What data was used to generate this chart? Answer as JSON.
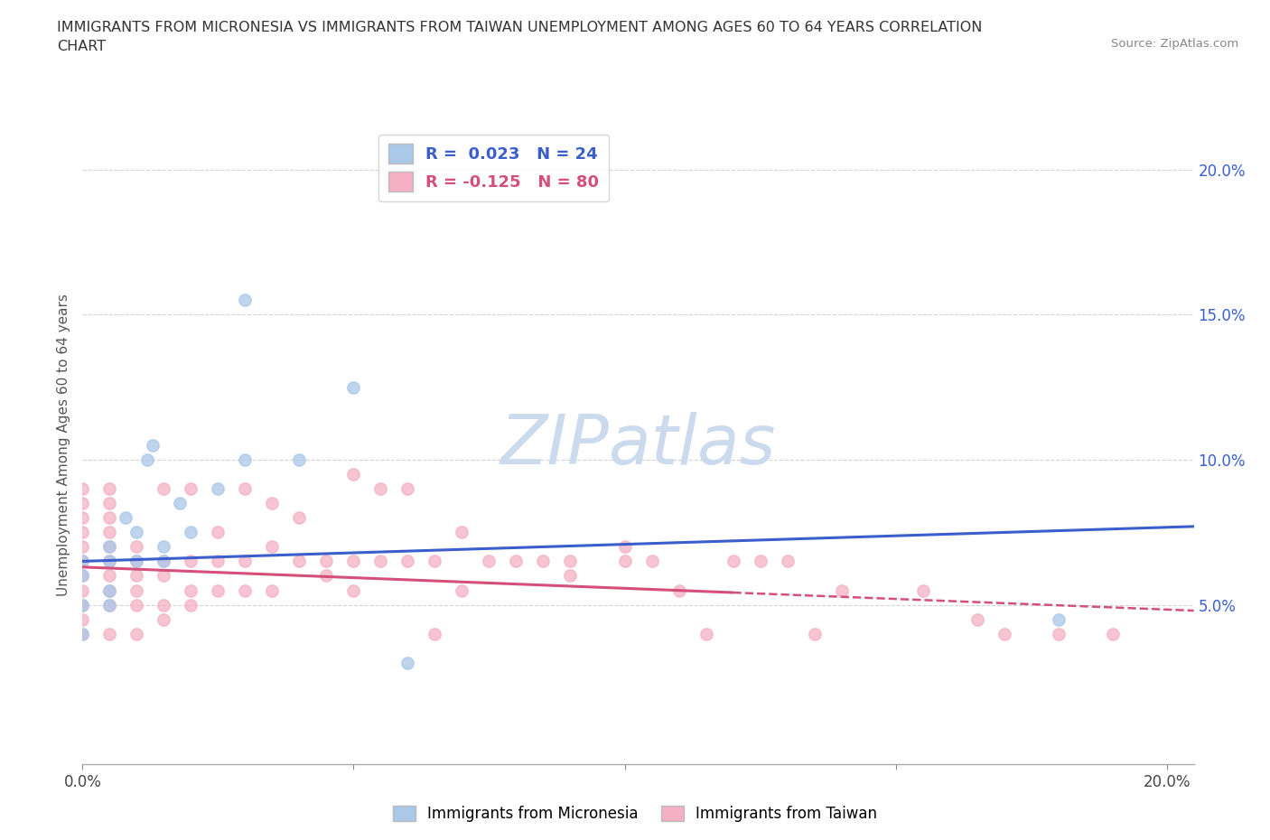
{
  "title": "IMMIGRANTS FROM MICRONESIA VS IMMIGRANTS FROM TAIWAN UNEMPLOYMENT AMONG AGES 60 TO 64 YEARS CORRELATION\nCHART",
  "source": "Source: ZipAtlas.com",
  "ylabel": "Unemployment Among Ages 60 to 64 years",
  "xlim": [
    0.0,
    0.205
  ],
  "ylim": [
    -0.005,
    0.215
  ],
  "y_ticks_right": [
    0.05,
    0.1,
    0.15,
    0.2
  ],
  "y_tick_labels_right": [
    "5.0%",
    "10.0%",
    "15.0%",
    "20.0%"
  ],
  "grid_color": "#c8c8c8",
  "background_color": "#ffffff",
  "micronesia_color": "#aac8e8",
  "taiwan_color": "#f5b0c5",
  "micronesia_line_color": "#3a5fcd",
  "taiwan_line_color": "#d4507a",
  "R_micronesia": 0.023,
  "N_micronesia": 24,
  "R_taiwan": -0.125,
  "N_taiwan": 80,
  "micronesia_x": [
    0.0,
    0.0,
    0.0,
    0.0,
    0.005,
    0.005,
    0.005,
    0.005,
    0.008,
    0.01,
    0.01,
    0.012,
    0.013,
    0.015,
    0.015,
    0.018,
    0.02,
    0.025,
    0.03,
    0.03,
    0.04,
    0.05,
    0.06,
    0.18
  ],
  "micronesia_y": [
    0.04,
    0.05,
    0.06,
    0.065,
    0.05,
    0.055,
    0.065,
    0.07,
    0.08,
    0.065,
    0.075,
    0.1,
    0.105,
    0.065,
    0.07,
    0.085,
    0.075,
    0.09,
    0.1,
    0.155,
    0.1,
    0.125,
    0.03,
    0.045
  ],
  "taiwan_x": [
    0.0,
    0.0,
    0.0,
    0.0,
    0.0,
    0.0,
    0.0,
    0.0,
    0.0,
    0.0,
    0.0,
    0.005,
    0.005,
    0.005,
    0.005,
    0.005,
    0.005,
    0.005,
    0.005,
    0.005,
    0.005,
    0.01,
    0.01,
    0.01,
    0.01,
    0.01,
    0.01,
    0.015,
    0.015,
    0.015,
    0.015,
    0.015,
    0.02,
    0.02,
    0.02,
    0.02,
    0.025,
    0.025,
    0.025,
    0.03,
    0.03,
    0.03,
    0.035,
    0.035,
    0.035,
    0.04,
    0.04,
    0.045,
    0.045,
    0.05,
    0.05,
    0.05,
    0.055,
    0.055,
    0.06,
    0.06,
    0.065,
    0.065,
    0.07,
    0.07,
    0.075,
    0.08,
    0.085,
    0.09,
    0.09,
    0.1,
    0.1,
    0.105,
    0.11,
    0.115,
    0.12,
    0.125,
    0.13,
    0.135,
    0.14,
    0.155,
    0.165,
    0.17,
    0.18,
    0.19
  ],
  "taiwan_y": [
    0.04,
    0.045,
    0.05,
    0.055,
    0.06,
    0.065,
    0.07,
    0.075,
    0.08,
    0.085,
    0.09,
    0.04,
    0.05,
    0.055,
    0.06,
    0.065,
    0.07,
    0.075,
    0.08,
    0.085,
    0.09,
    0.04,
    0.05,
    0.055,
    0.06,
    0.065,
    0.07,
    0.045,
    0.05,
    0.06,
    0.065,
    0.09,
    0.05,
    0.055,
    0.065,
    0.09,
    0.055,
    0.065,
    0.075,
    0.055,
    0.065,
    0.09,
    0.055,
    0.07,
    0.085,
    0.065,
    0.08,
    0.06,
    0.065,
    0.055,
    0.065,
    0.095,
    0.065,
    0.09,
    0.065,
    0.09,
    0.04,
    0.065,
    0.055,
    0.075,
    0.065,
    0.065,
    0.065,
    0.06,
    0.065,
    0.065,
    0.07,
    0.065,
    0.055,
    0.04,
    0.065,
    0.065,
    0.065,
    0.04,
    0.055,
    0.055,
    0.045,
    0.04,
    0.04,
    0.04
  ],
  "micronesia_trend": [
    0.065,
    0.077
  ],
  "taiwan_trend_solid_end": 0.12,
  "taiwan_trend": [
    0.063,
    0.048
  ],
  "watermark": "ZIPatlas",
  "watermark_color": "#ccdaee"
}
